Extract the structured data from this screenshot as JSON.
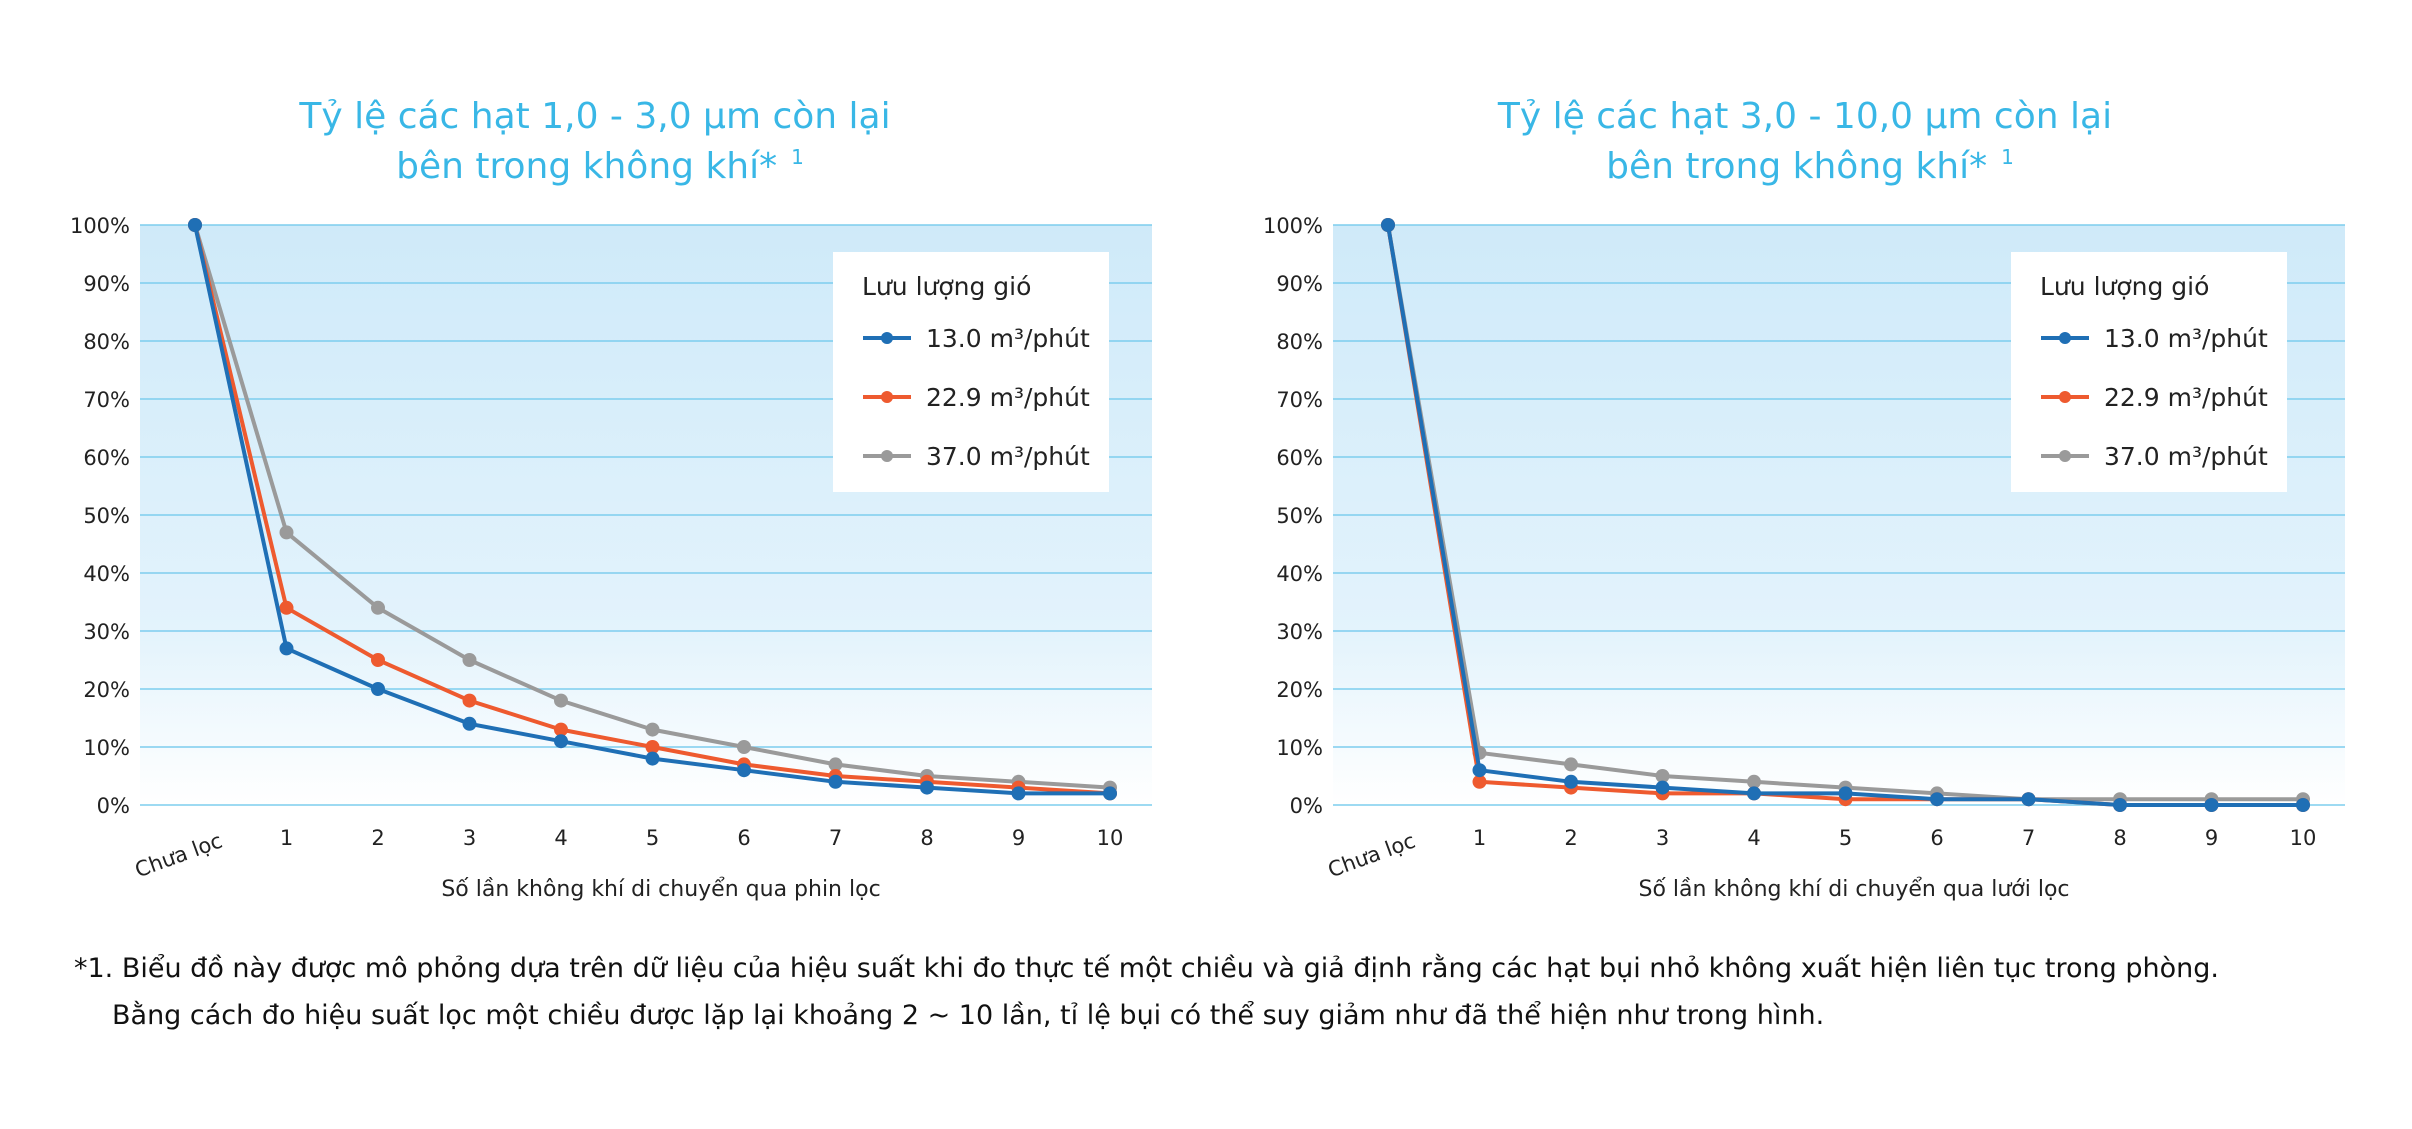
{
  "chart_data": [
    {
      "type": "line",
      "title_line1": "Tỷ lệ các hạt 1,0 - 3,0 μm còn lại",
      "title_line2": "bên trong không khí*",
      "title_sup": "1",
      "xlabel": "Số lần không khí di chuyển qua phin lọc",
      "ylabel": "",
      "categories": [
        "Chưa lọc",
        "1",
        "2",
        "3",
        "4",
        "5",
        "6",
        "7",
        "8",
        "9",
        "10"
      ],
      "yticks": [
        "0%",
        "10%",
        "20%",
        "30%",
        "40%",
        "50%",
        "60%",
        "70%",
        "80%",
        "90%",
        "100%"
      ],
      "ylim": [
        0,
        100
      ],
      "legend_title": "Lưu lượng gió",
      "legend_position": "top-right",
      "grid": true,
      "series": [
        {
          "name": "13.0 m³/phút",
          "color": "#1f6fb5",
          "values": [
            100,
            27,
            20,
            14,
            11,
            8,
            6,
            4,
            3,
            2,
            2
          ]
        },
        {
          "name": "22.9 m³/phút",
          "color": "#ee5a2f",
          "values": [
            100,
            34,
            25,
            18,
            13,
            10,
            7,
            5,
            4,
            3,
            2
          ]
        },
        {
          "name": "37.0 m³/phút",
          "color": "#9a9a9a",
          "values": [
            100,
            47,
            34,
            25,
            18,
            13,
            10,
            7,
            5,
            4,
            3
          ]
        }
      ]
    },
    {
      "type": "line",
      "title_line1": "Tỷ lệ các hạt 3,0 - 10,0 μm còn lại",
      "title_line2": "bên trong không khí*",
      "title_sup": "1",
      "xlabel": "Số lần không khí di chuyển qua lưới lọc",
      "ylabel": "",
      "categories": [
        "Chưa lọc",
        "1",
        "2",
        "3",
        "4",
        "5",
        "6",
        "7",
        "8",
        "9",
        "10"
      ],
      "yticks": [
        "0%",
        "10%",
        "20%",
        "30%",
        "40%",
        "50%",
        "60%",
        "70%",
        "80%",
        "90%",
        "100%"
      ],
      "ylim": [
        0,
        100
      ],
      "legend_title": "Lưu lượng gió",
      "legend_position": "top-right",
      "grid": true,
      "series": [
        {
          "name": "13.0 m³/phút",
          "color": "#1f6fb5",
          "values": [
            100,
            6,
            4,
            3,
            2,
            2,
            1,
            1,
            0,
            0,
            0
          ]
        },
        {
          "name": "22.9 m³/phút",
          "color": "#ee5a2f",
          "values": [
            100,
            4,
            3,
            2,
            2,
            1,
            1,
            1,
            0,
            0,
            0
          ]
        },
        {
          "name": "37.0 m³/phút",
          "color": "#9a9a9a",
          "values": [
            100,
            9,
            7,
            5,
            4,
            3,
            2,
            1,
            1,
            1,
            1
          ]
        }
      ]
    }
  ],
  "footnote": {
    "line1": "*1. Biểu đồ này được mô phỏng dựa trên dữ liệu của hiệu suất khi đo thực tế một chiều và giả định rằng các hạt bụi nhỏ không xuất hiện liên tục trong phòng.",
    "line2": "Bằng cách đo hiệu suất lọc một chiều được lặp lại khoảng 2 ~ 10 lần,  tỉ lệ bụi có thể suy giảm như đã thể hiện như trong hình."
  }
}
